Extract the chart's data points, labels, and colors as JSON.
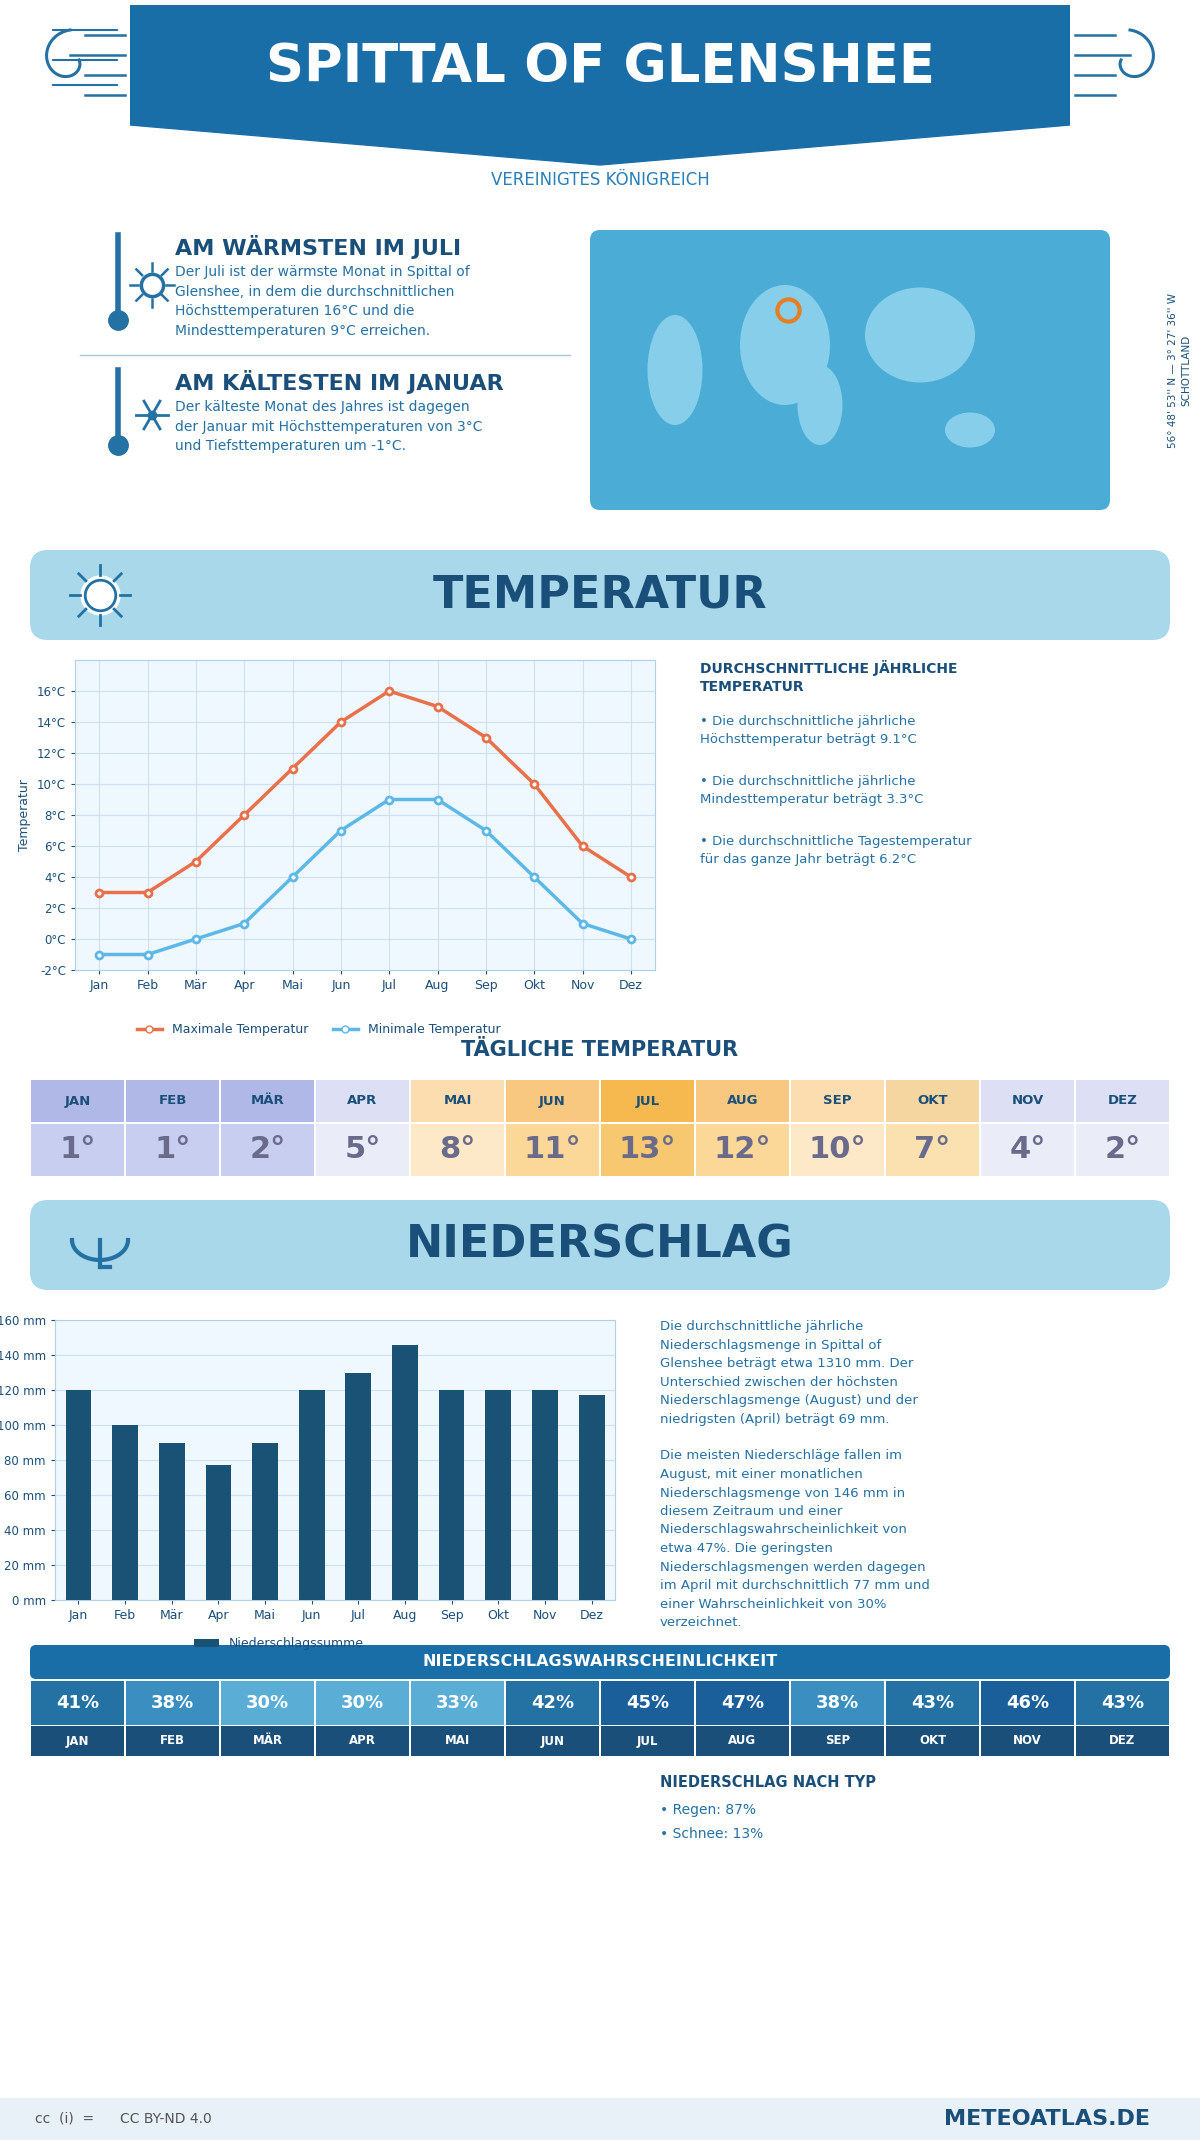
{
  "title": "SPITTAL OF GLENSHEE",
  "subtitle": "VEREINIGTES KÖNIGREICH",
  "header_bg": "#1a6ea8",
  "white": "#ffffff",
  "light_blue_bg": "#d6eaf8",
  "mid_blue": "#2980b9",
  "dark_blue": "#1a4f7a",
  "text_blue": "#1a5276",
  "bg_color": "#f0f8ff",
  "warmest_title": "AM WÄRMSTEN IM JULI",
  "warmest_text": "Der Juli ist der wärmste Monat in Spittal of\nGlenshee, in dem die durchschnittlichen\nHöchsttemperaturen 16°C und die\nMindesttemperaturen 9°C erreichen.",
  "coldest_title": "AM KÄLTESTEN IM JANUAR",
  "coldest_text": "Der kälteste Monat des Jahres ist dagegen\nder Januar mit Höchsttemperaturen von 3°C\nund Tiefsttemperaturen um -1°C.",
  "temp_section_title": "TEMPERATUR",
  "months": [
    "Jan",
    "Feb",
    "Mär",
    "Apr",
    "Mai",
    "Jun",
    "Jul",
    "Aug",
    "Sep",
    "Okt",
    "Nov",
    "Dez"
  ],
  "max_temp": [
    3,
    3,
    5,
    8,
    11,
    14,
    16,
    15,
    13,
    10,
    6,
    4
  ],
  "min_temp": [
    -1,
    -1,
    0,
    1,
    4,
    7,
    9,
    9,
    7,
    4,
    1,
    0
  ],
  "max_temp_color": "#e8714a",
  "min_temp_color": "#5db8e8",
  "temp_ylim": [
    -2,
    18
  ],
  "temp_yticks": [
    -2,
    0,
    2,
    4,
    6,
    8,
    10,
    12,
    14,
    16
  ],
  "avg_temp_title": "DURCHSCHNITTLICHE JÄHRLICHE\nTEMPERATUR",
  "avg_high_text": "Die durchschnittliche jährliche\nHöchsttemperatur beträgt 9.1°C",
  "avg_low_text": "Die durchschnittliche jährliche\nMindesttemperatur beträgt 3.3°C",
  "avg_daily_text": "Die durchschnittliche Tagestemperatur\nfür das ganze Jahr beträgt 6.2°C",
  "daily_temp_title": "TÄGLICHE TEMPERATUR",
  "daily_temps": [
    1,
    1,
    2,
    5,
    8,
    11,
    13,
    12,
    10,
    7,
    4,
    2
  ],
  "precip_section_title": "NIEDERSCHLAG",
  "precip_values": [
    120,
    100,
    90,
    77,
    90,
    120,
    130,
    146,
    120,
    120,
    120,
    117
  ],
  "precip_color": "#1a5276",
  "precip_ylim": [
    0,
    160
  ],
  "precip_yticks": [
    0,
    20,
    40,
    60,
    80,
    100,
    120,
    140,
    160
  ],
  "precip_text": "Die durchschnittliche jährliche\nNiederschlagsmenge in Spittal of\nGlenshee beträgt etwa 1310 mm. Der\nUnterschied zwischen der höchsten\nNiederschlagsmenge (August) und der\nniedrigsten (April) beträgt 69 mm.\n\nDie meisten Niederschläge fallen im\nAugust, mit einer monatlichen\nNiederschlagsmenge von 146 mm in\ndiesem Zeitraum und einer\nNiederschlagswahrscheinlichkeit von\netwa 47%. Die geringsten\nNiederschlagsmengen werden dagegen\nim April mit durchschnittlich 77 mm und\neiner Wahrscheinlichkeit von 30%\nverzeichnet.",
  "prob_title": "NIEDERSCHLAGSWAHRSCHEINLICHKEIT",
  "prob_values": [
    41,
    38,
    30,
    30,
    33,
    42,
    45,
    47,
    38,
    43,
    46,
    43
  ],
  "rain_snow_title": "NIEDERSCHLAG NACH TYP",
  "rain_pct": "87%",
  "snow_pct": "13%",
  "coords": "56° 48' 53'' N — 3° 27' 36'' W",
  "region": "SCHOTTLAND",
  "footer_text": "METEOATLAS.DE"
}
